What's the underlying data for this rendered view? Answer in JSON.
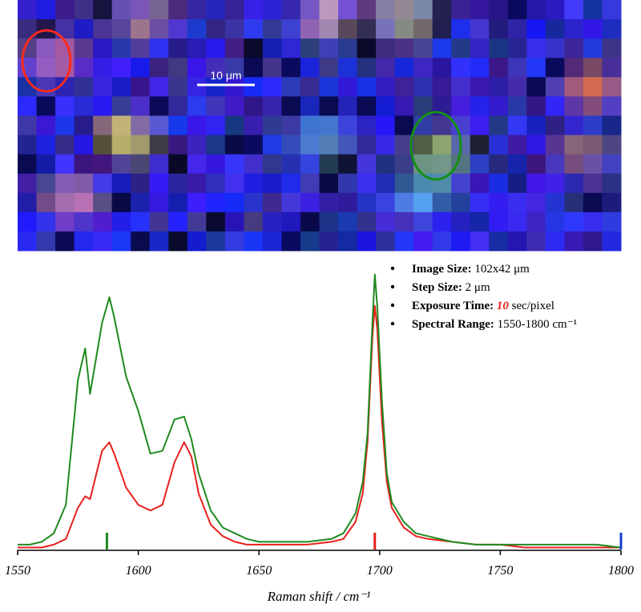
{
  "map": {
    "scale_bar": "10 μm"
  },
  "info": [
    {
      "label": "Image Size:",
      "value": "102x42 μm"
    },
    {
      "label": "Step Size:",
      "value": "2 μm"
    },
    {
      "label": "Exposure Time:",
      "highlight": "10",
      "value": "sec/pixel"
    },
    {
      "label": "Spectral Range:",
      "value": "1550-1800 cm⁻¹"
    }
  ],
  "chart_data": {
    "type": "line",
    "xlabel": "Raman shift / cm⁻¹",
    "xlim": [
      1550,
      1800
    ],
    "xticks": [
      1550,
      1600,
      1650,
      1700,
      1750,
      1800
    ],
    "ylim": [
      0,
      100
    ],
    "x": [
      1550,
      1555,
      1560,
      1565,
      1570,
      1575,
      1578,
      1580,
      1585,
      1588,
      1590,
      1595,
      1600,
      1605,
      1610,
      1615,
      1619,
      1622,
      1625,
      1630,
      1635,
      1640,
      1645,
      1650,
      1660,
      1670,
      1680,
      1685,
      1690,
      1693,
      1695,
      1697,
      1698,
      1699,
      1701,
      1703,
      1705,
      1710,
      1715,
      1720,
      1730,
      1740,
      1750,
      1760,
      1770,
      1780,
      1790,
      1800
    ],
    "series": [
      {
        "color": "#1f8a1f",
        "values": [
          2,
          2,
          3,
          6,
          16,
          60,
          71,
          55,
          80,
          89,
          82,
          61,
          49,
          34,
          35,
          46,
          47,
          39,
          27,
          14,
          8,
          6,
          4,
          3,
          3,
          3,
          4,
          6,
          13,
          24,
          41,
          80,
          97,
          86,
          52,
          27,
          17,
          10,
          6,
          5,
          3,
          2,
          2,
          2,
          2,
          2,
          2,
          1
        ]
      },
      {
        "color": "#e8201c",
        "values": [
          1,
          1,
          1,
          2,
          4,
          15,
          19,
          18,
          35,
          38,
          34,
          22,
          16,
          14,
          16,
          31,
          38,
          33,
          20,
          9,
          5,
          3,
          2,
          2,
          2,
          2,
          3,
          4,
          10,
          20,
          38,
          75,
          86,
          78,
          45,
          24,
          15,
          8,
          5,
          4,
          3,
          2,
          2,
          1,
          1,
          1,
          1,
          1
        ]
      }
    ],
    "markers": [
      {
        "x": 1587,
        "color": "#1f8a1f"
      },
      {
        "x": 1698,
        "color": "#e8201c"
      },
      {
        "x": 1800,
        "color": "#1a3fd0"
      }
    ]
  }
}
